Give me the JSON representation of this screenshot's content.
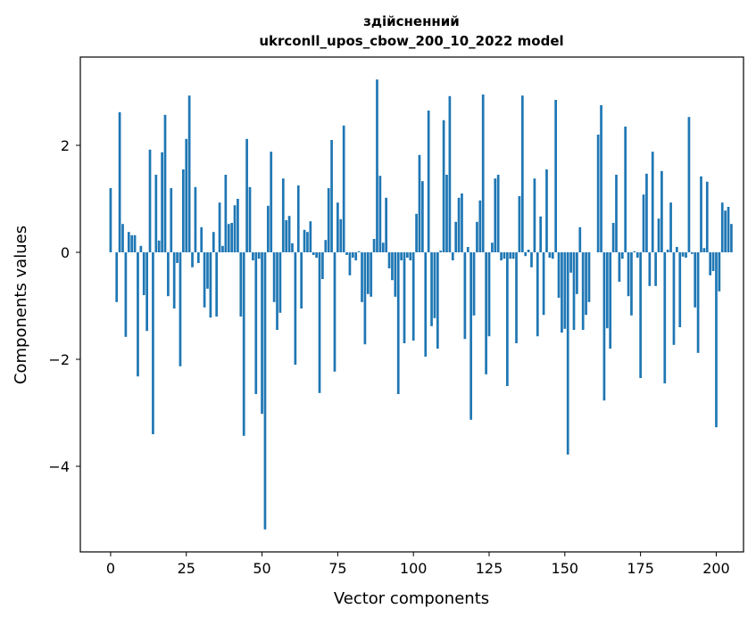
{
  "chart_data": {
    "type": "bar",
    "title_line1": "здійсненний",
    "title_line2": "ukrconll_upos_cbow_200_10_2022 model",
    "xlabel": "Vector components",
    "ylabel": "Components values",
    "xlim": [
      -10,
      209
    ],
    "ylim": [
      -5.6,
      3.65
    ],
    "xticks": [
      {
        "value": 0,
        "label": "0"
      },
      {
        "value": 25,
        "label": "25"
      },
      {
        "value": 50,
        "label": "50"
      },
      {
        "value": 75,
        "label": "75"
      },
      {
        "value": 100,
        "label": "100"
      },
      {
        "value": 125,
        "label": "125"
      },
      {
        "value": 150,
        "label": "150"
      },
      {
        "value": 175,
        "label": "175"
      },
      {
        "value": 200,
        "label": "200"
      }
    ],
    "yticks": [
      {
        "value": -4,
        "label": "−4"
      },
      {
        "value": -2,
        "label": "−2"
      },
      {
        "value": 0,
        "label": "0"
      },
      {
        "value": 2,
        "label": "2"
      }
    ],
    "bar_color": "#1f77b4",
    "values": [
      1.2,
      0.0,
      -0.93,
      2.62,
      0.53,
      -1.58,
      0.38,
      0.32,
      0.32,
      -2.32,
      0.12,
      -0.8,
      -1.47,
      1.92,
      -3.4,
      1.45,
      0.22,
      1.87,
      2.57,
      -0.82,
      1.2,
      -1.05,
      -0.2,
      -2.13,
      1.55,
      2.12,
      2.93,
      -0.28,
      1.22,
      -0.2,
      0.47,
      -1.03,
      -0.68,
      -1.22,
      0.38,
      -1.2,
      0.93,
      0.12,
      1.45,
      0.53,
      0.55,
      0.88,
      1.0,
      -1.2,
      -3.43,
      2.12,
      1.22,
      -0.15,
      -2.65,
      -0.12,
      -3.02,
      -5.18,
      0.87,
      1.88,
      -0.93,
      -1.45,
      -1.13,
      1.38,
      0.6,
      0.68,
      0.17,
      -2.1,
      1.25,
      -1.05,
      0.42,
      0.38,
      0.58,
      -0.05,
      -0.1,
      -2.63,
      -0.5,
      0.23,
      1.2,
      2.1,
      -2.23,
      0.93,
      0.62,
      2.37,
      -0.05,
      -0.43,
      -0.1,
      -0.15,
      0.02,
      -0.93,
      -1.72,
      -0.78,
      -0.83,
      0.25,
      3.23,
      1.43,
      0.18,
      1.02,
      -0.3,
      -0.52,
      -0.83,
      -2.65,
      -0.15,
      -1.7,
      -0.1,
      -0.15,
      -1.65,
      0.72,
      1.82,
      1.33,
      -1.95,
      2.65,
      -1.38,
      -1.23,
      -1.8,
      0.03,
      2.47,
      1.45,
      2.92,
      -0.15,
      0.57,
      1.02,
      1.1,
      -1.62,
      0.1,
      -3.13,
      -1.18,
      0.57,
      0.97,
      2.95,
      -2.28,
      -1.57,
      0.18,
      1.38,
      1.45,
      -0.15,
      -0.12,
      -2.5,
      -0.12,
      -0.12,
      -1.7,
      1.05,
      2.93,
      -0.07,
      0.05,
      -0.28,
      1.38,
      -1.57,
      0.67,
      -1.17,
      1.55,
      -0.1,
      -0.12,
      2.85,
      -0.85,
      -1.5,
      -1.43,
      -3.78,
      -0.38,
      -1.45,
      -0.78,
      0.47,
      -1.45,
      -1.17,
      -0.93,
      0.0,
      0.0,
      2.2,
      2.75,
      -2.77,
      -1.42,
      -1.8,
      0.55,
      1.45,
      -0.55,
      -0.12,
      2.35,
      -0.82,
      -1.18,
      0.02,
      -0.1,
      -2.35,
      1.08,
      1.47,
      -0.63,
      1.88,
      -0.63,
      0.63,
      1.52,
      -2.45,
      0.05,
      0.93,
      -1.73,
      0.1,
      -1.4,
      -0.08,
      -0.1,
      2.53,
      -0.03,
      -1.03,
      -1.88,
      1.42,
      0.08,
      1.32,
      -0.43,
      -0.35,
      -3.27,
      -0.73,
      0.93,
      0.78,
      0.85,
      0.53
    ]
  }
}
